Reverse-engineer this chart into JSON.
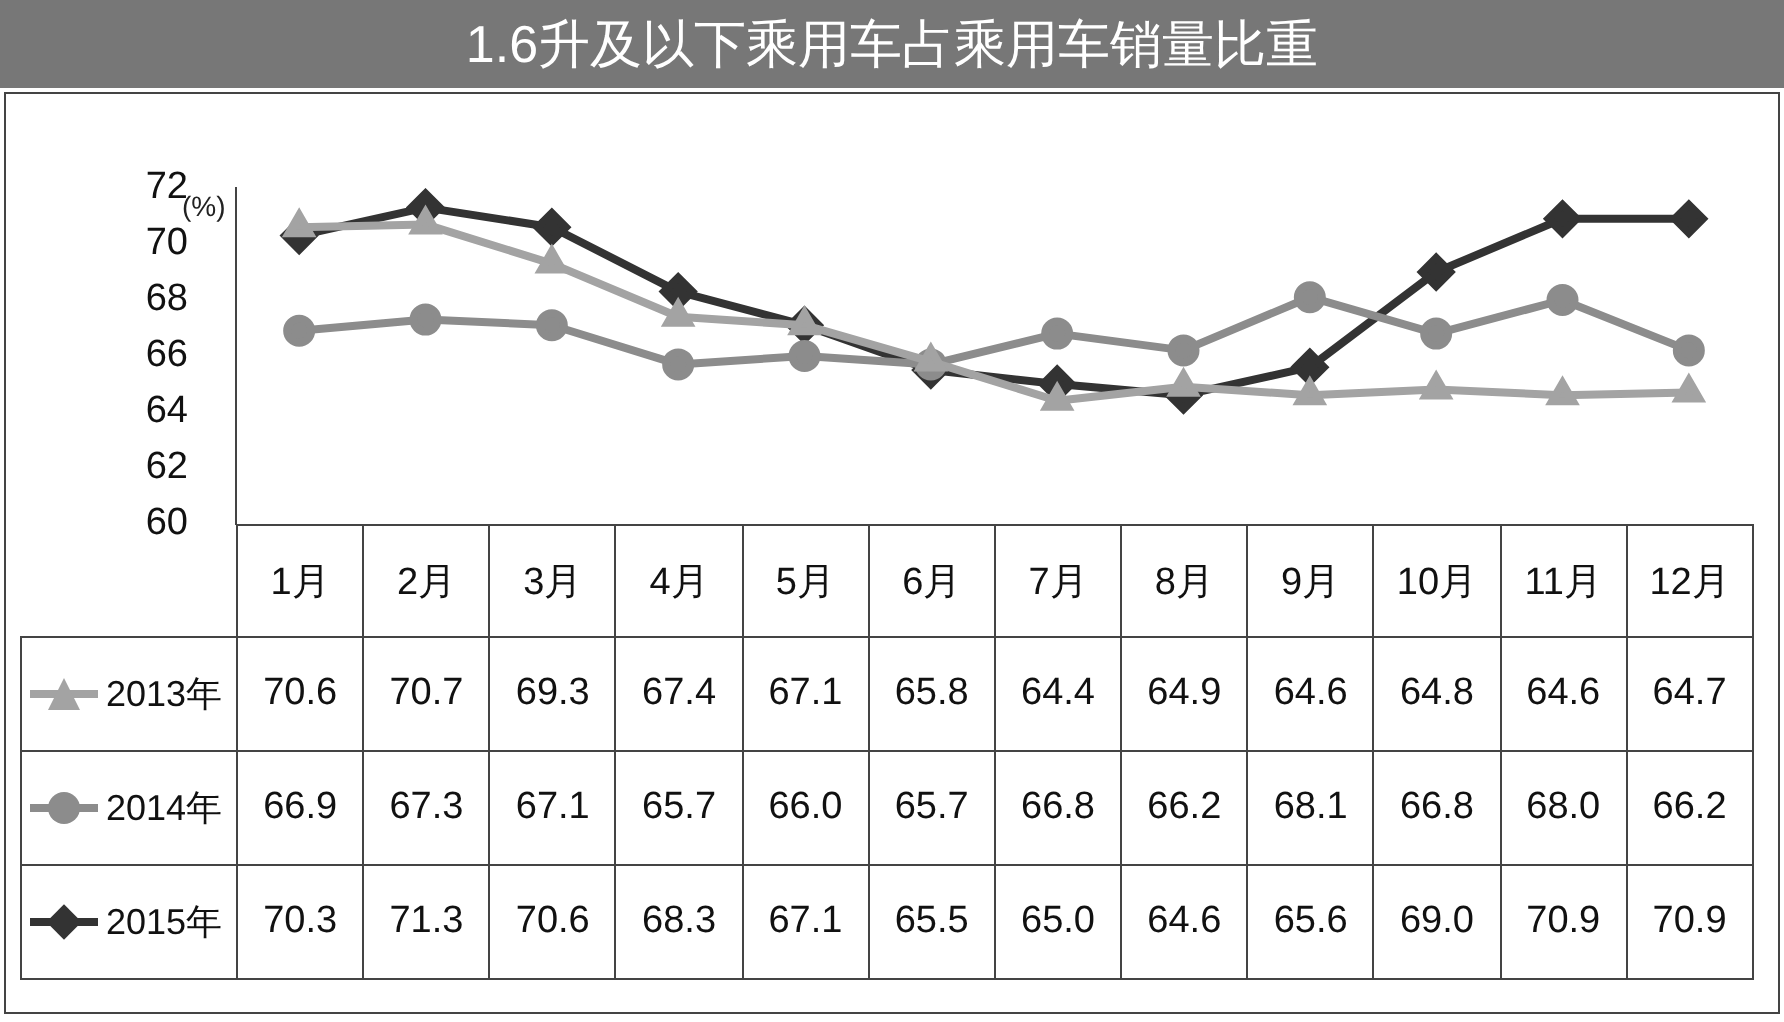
{
  "chart_data": {
    "type": "line",
    "title": "1.6升及以下乘用车占乘用车销量比重",
    "ylabel": "(%)",
    "categories": [
      "1月",
      "2月",
      "3月",
      "4月",
      "5月",
      "6月",
      "7月",
      "8月",
      "9月",
      "10月",
      "11月",
      "12月"
    ],
    "ylim": [
      60,
      72
    ],
    "yticks": [
      60,
      62,
      64,
      66,
      68,
      70,
      72
    ],
    "grid": false,
    "legend": "bottom left",
    "series": [
      {
        "name": "2013年",
        "color": "#a3a3a3",
        "marker": "triangle",
        "values": [
          70.6,
          70.7,
          69.3,
          67.4,
          67.1,
          65.8,
          64.4,
          64.9,
          64.6,
          64.8,
          64.6,
          64.7
        ],
        "value_labels": [
          "70.6",
          "70.7",
          "69.3",
          "67.4",
          "67.1",
          "65.8",
          "64.4",
          "64.9",
          "64.6",
          "64.8",
          "64.6",
          "64.7"
        ]
      },
      {
        "name": "2014年",
        "color": "#8c8c8c",
        "marker": "circle",
        "values": [
          66.9,
          67.3,
          67.1,
          65.7,
          66.0,
          65.7,
          66.8,
          66.2,
          68.1,
          66.8,
          68.0,
          66.2
        ],
        "value_labels": [
          "66.9",
          "67.3",
          "67.1",
          "65.7",
          "66.0",
          "65.7",
          "66.8",
          "66.2",
          "68.1",
          "66.8",
          "68.0",
          "66.2"
        ]
      },
      {
        "name": "2015年",
        "color": "#333333",
        "marker": "diamond",
        "values": [
          70.3,
          71.3,
          70.6,
          68.3,
          67.1,
          65.5,
          65.0,
          64.6,
          65.6,
          69.0,
          70.9,
          70.9
        ],
        "value_labels": [
          "70.3",
          "71.3",
          "70.6",
          "68.3",
          "67.1",
          "65.5",
          "65.0",
          "64.6",
          "65.6",
          "69.0",
          "70.9",
          "70.9"
        ]
      }
    ]
  }
}
